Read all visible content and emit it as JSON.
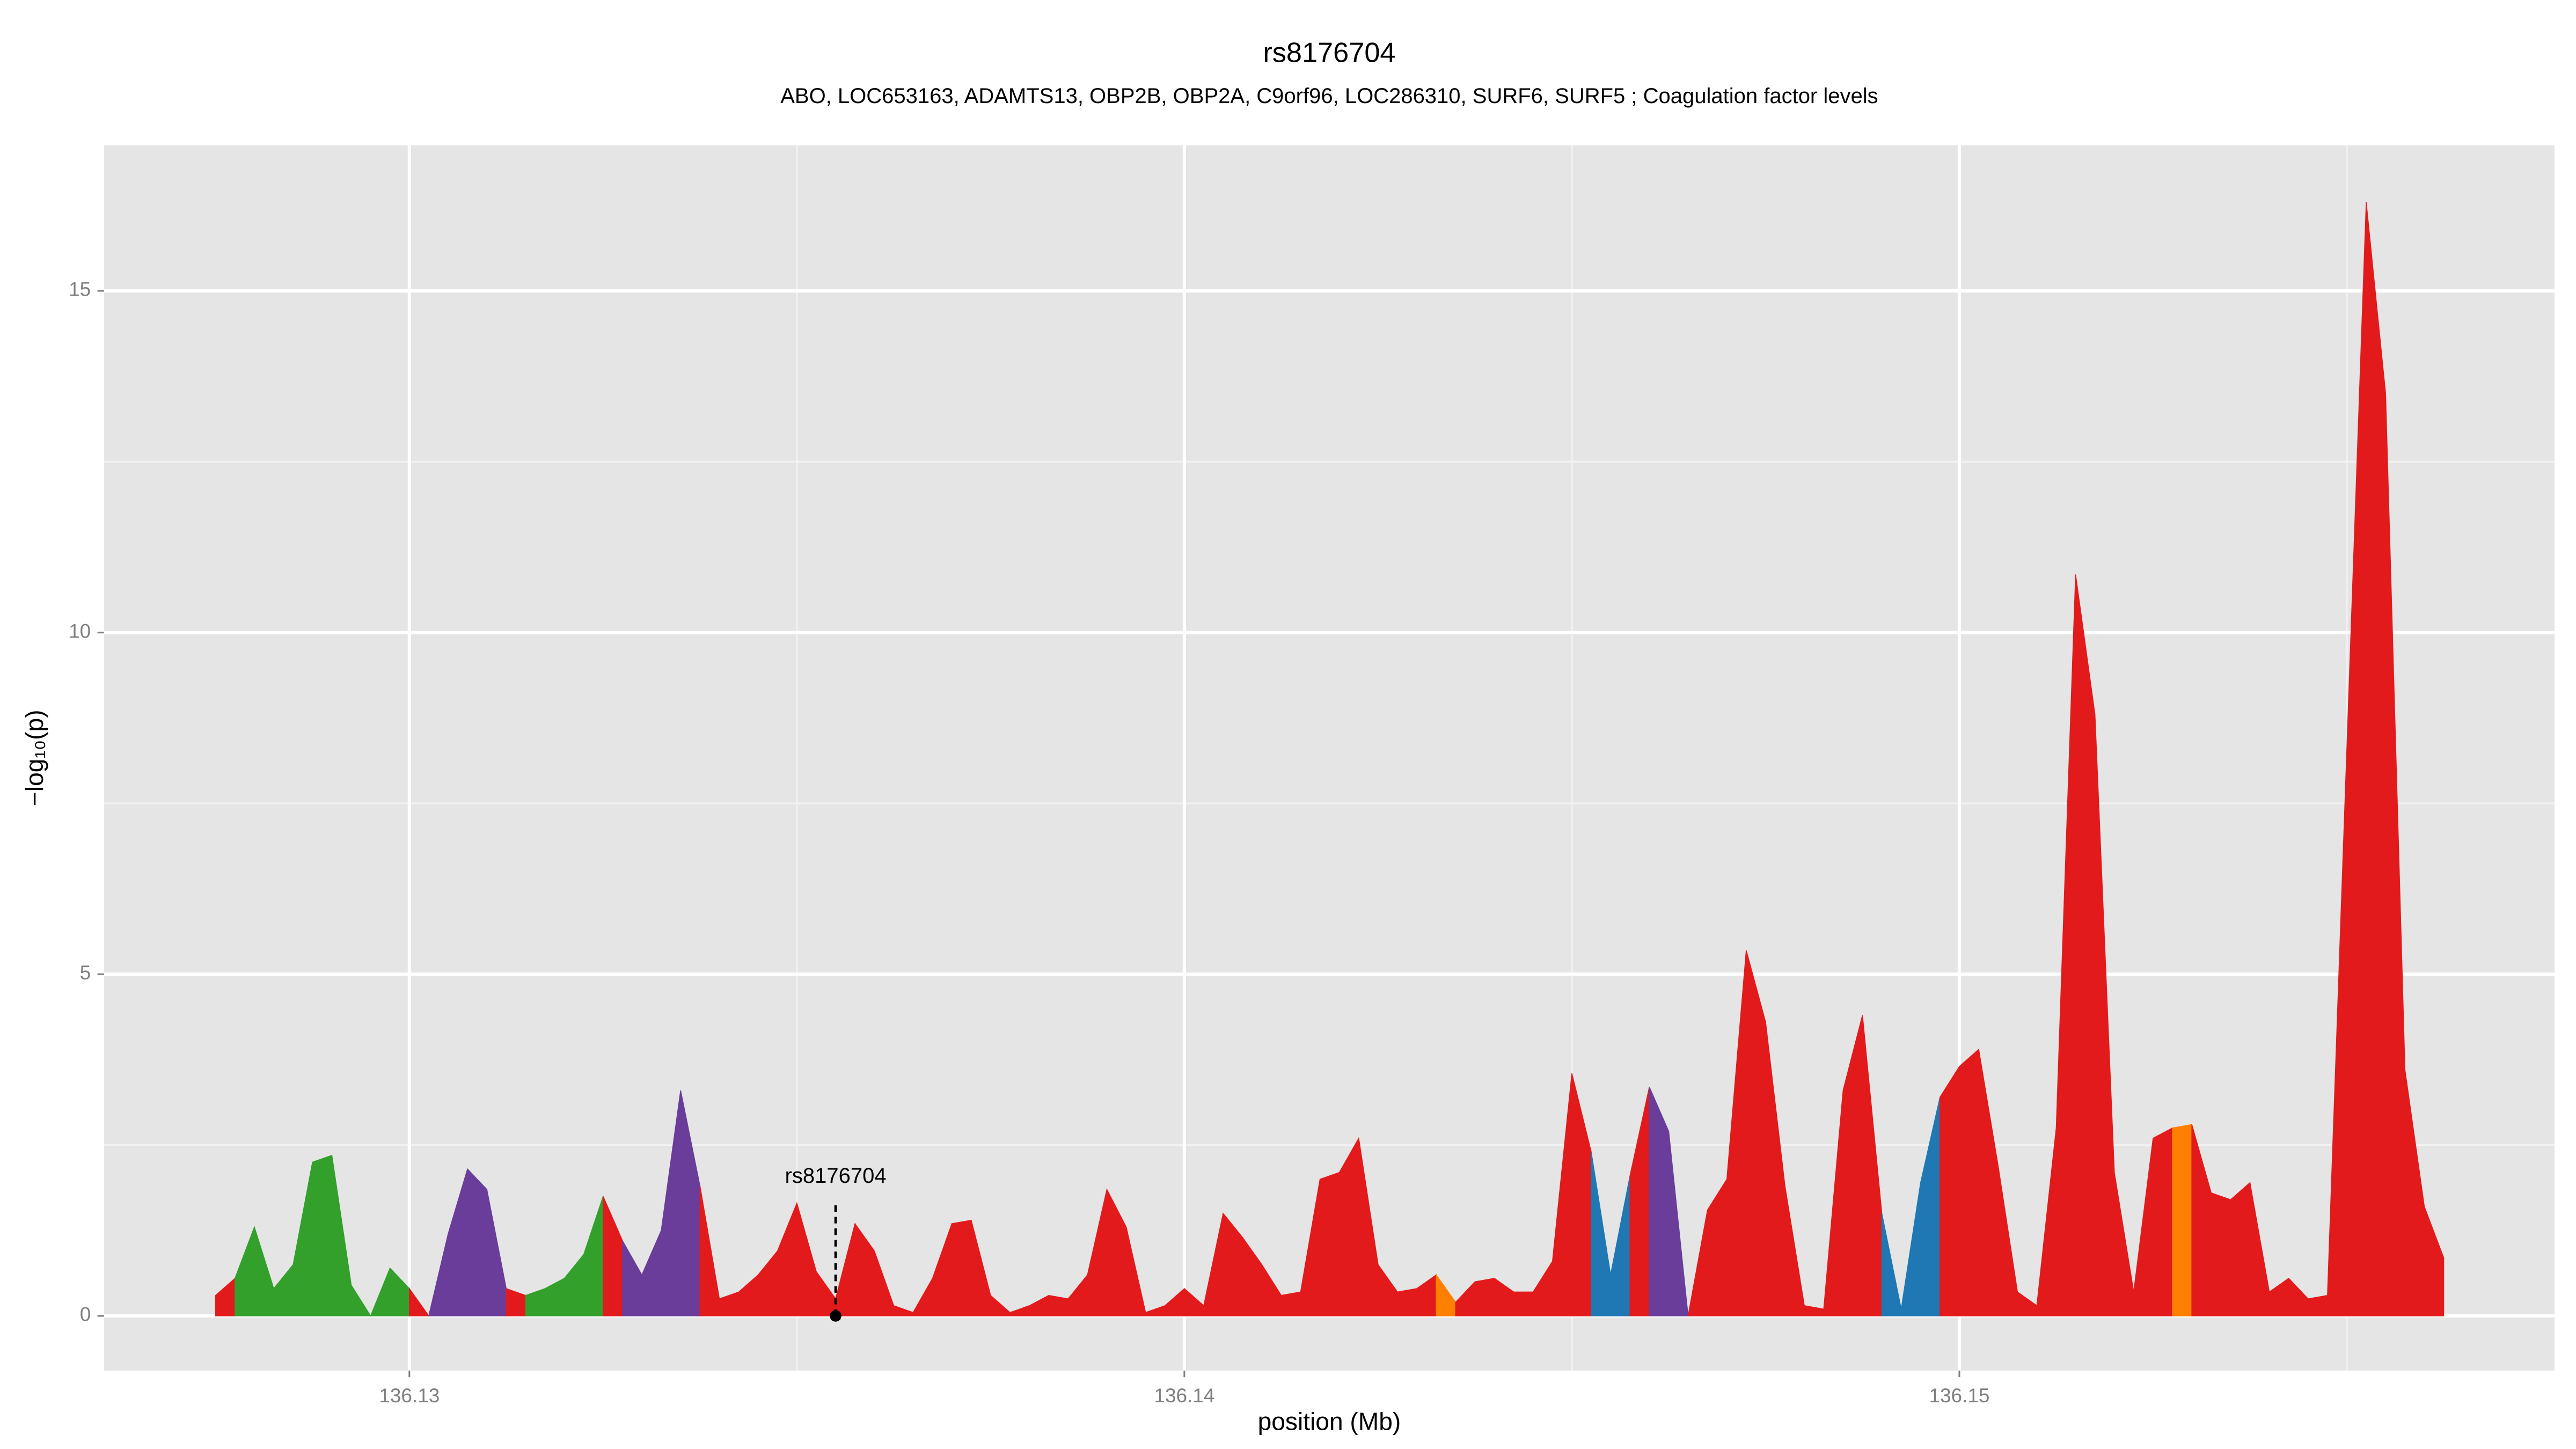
{
  "chart_data": {
    "type": "area",
    "title": "rs8176704",
    "subtitle": "ABO, LOC653163, ADAMTS13, OBP2B, OBP2A, C9orf96, LOC286310, SURF6, SURF5 ; Coagulation factor levels",
    "x_label": "position (Mb)",
    "y_label": "−log₁₀(p)",
    "xlim": [
      136.12606,
      136.15768
    ],
    "ylim": [
      -0.8,
      17.13
    ],
    "xticks": [
      136.13,
      136.14,
      136.15
    ],
    "yticks": [
      0,
      5,
      10,
      15
    ],
    "minor_xticks": [
      136.125,
      136.135,
      136.145,
      136.155
    ],
    "minor_yticks": [
      2.5,
      7.5,
      12.5
    ],
    "grid": true,
    "background": "#e5e5e5",
    "series": [
      {
        "color": "#e31a1c",
        "x": [
          136.1275,
          136.12775
        ],
        "values": [
          0.3,
          0.55
        ]
      },
      {
        "color": "#33a02c",
        "x": [
          136.12775,
          136.128,
          136.12825,
          136.1285,
          136.12875,
          136.129,
          136.12925,
          136.1295,
          136.12975,
          136.13
        ],
        "values": [
          0.55,
          1.3,
          0.4,
          0.75,
          2.25,
          2.35,
          0.45,
          0,
          0.7,
          0.4
        ]
      },
      {
        "color": "#e31a1c",
        "x": [
          136.13,
          136.13025
        ],
        "values": [
          0.4,
          0
        ]
      },
      {
        "color": "#6a3d9a",
        "x": [
          136.13025,
          136.1305,
          136.13075,
          136.131,
          136.13125
        ],
        "values": [
          0,
          1.2,
          2.15,
          1.85,
          0.4
        ]
      },
      {
        "color": "#e31a1c",
        "x": [
          136.13125,
          136.1315
        ],
        "values": [
          0.4,
          0.3
        ]
      },
      {
        "color": "#33a02c",
        "x": [
          136.1315,
          136.13175,
          136.132,
          136.13225,
          136.1325
        ],
        "values": [
          0.3,
          0.4,
          0.55,
          0.9,
          1.75
        ]
      },
      {
        "color": "#e31a1c",
        "x": [
          136.1325,
          136.13275
        ],
        "values": [
          1.75,
          1.1
        ]
      },
      {
        "color": "#6a3d9a",
        "x": [
          136.13275,
          136.133,
          136.13325,
          136.1335,
          136.13375
        ],
        "values": [
          1.1,
          0.6,
          1.25,
          3.3,
          1.9
        ]
      },
      {
        "color": "#e31a1c",
        "x": [
          136.13375,
          136.134,
          136.13425,
          136.1345,
          136.13475,
          136.135,
          136.13525,
          136.1355,
          136.13575,
          136.136,
          136.13625,
          136.1365,
          136.13675,
          136.137,
          136.13725,
          136.1375,
          136.13775,
          136.138,
          136.13825,
          136.1385,
          136.13875,
          136.139,
          136.13925,
          136.1395,
          136.13975,
          136.14,
          136.14025,
          136.1405,
          136.14075,
          136.141,
          136.14125,
          136.1415,
          136.14175,
          136.142,
          136.14225,
          136.1425,
          136.14275,
          136.143,
          136.14325
        ],
        "values": [
          1.9,
          0.25,
          0.35,
          0.6,
          0.95,
          1.65,
          0.65,
          0.25,
          1.35,
          0.95,
          0.15,
          0.05,
          0.55,
          1.35,
          1.4,
          0.3,
          0.05,
          0.15,
          0.3,
          0.25,
          0.6,
          1.85,
          1.3,
          0.05,
          0.15,
          0.4,
          0.15,
          1.5,
          1.15,
          0.75,
          0.3,
          0.35,
          2.0,
          2.1,
          2.6,
          0.75,
          0.35,
          0.4,
          0.6
        ]
      },
      {
        "color": "#ff7f00",
        "x": [
          136.14325,
          136.1435
        ],
        "values": [
          0.6,
          0.2
        ]
      },
      {
        "color": "#e31a1c",
        "x": [
          136.1435,
          136.14375,
          136.144,
          136.14425,
          136.1445,
          136.14475,
          136.145,
          136.14525
        ],
        "values": [
          0.2,
          0.5,
          0.55,
          0.35,
          0.35,
          0.8,
          3.55,
          2.4
        ]
      },
      {
        "color": "#1f78b4",
        "x": [
          136.14525,
          136.1455,
          136.14575
        ],
        "values": [
          2.4,
          0.6,
          2.05
        ]
      },
      {
        "color": "#e31a1c",
        "x": [
          136.14575,
          136.146
        ],
        "values": [
          2.05,
          3.35
        ]
      },
      {
        "color": "#6a3d9a",
        "x": [
          136.146,
          136.14625,
          136.1465
        ],
        "values": [
          3.35,
          2.7,
          0
        ]
      },
      {
        "color": "#e31a1c",
        "x": [
          136.1465,
          136.14675,
          136.147,
          136.14725,
          136.1475,
          136.14775,
          136.148,
          136.14825,
          136.1485,
          136.14875,
          136.149
        ],
        "values": [
          0,
          1.55,
          2.0,
          5.35,
          4.3,
          1.9,
          0.15,
          0.1,
          3.3,
          4.4,
          1.5
        ]
      },
      {
        "color": "#1f78b4",
        "x": [
          136.149,
          136.14925,
          136.1495,
          136.14975
        ],
        "values": [
          1.5,
          0.1,
          1.95,
          3.2
        ]
      },
      {
        "color": "#e31a1c",
        "x": [
          136.14975,
          136.15,
          136.15025,
          136.1505,
          136.15075,
          136.151,
          136.15125,
          136.1515,
          136.15175,
          136.152,
          136.15225,
          136.1525,
          136.15275
        ],
        "values": [
          3.2,
          3.65,
          3.9,
          2.2,
          0.35,
          0.15,
          2.75,
          10.85,
          8.8,
          2.1,
          0.35,
          2.6,
          2.75
        ]
      },
      {
        "color": "#ff7f00",
        "x": [
          136.15275,
          136.153
        ],
        "values": [
          2.75,
          2.8
        ]
      },
      {
        "color": "#e31a1c",
        "x": [
          136.153,
          136.15325,
          136.1535,
          136.15375,
          136.154,
          136.15425,
          136.1545,
          136.15475,
          136.15525,
          136.1555,
          136.15575,
          136.156,
          136.15625
        ],
        "values": [
          2.8,
          1.8,
          1.7,
          1.95,
          0.35,
          0.55,
          0.25,
          0.3,
          16.3,
          13.5,
          3.6,
          1.6,
          0.85
        ]
      }
    ],
    "annotations": [
      {
        "text": "rs8176704",
        "x": 136.1355,
        "y": 0
      }
    ]
  }
}
